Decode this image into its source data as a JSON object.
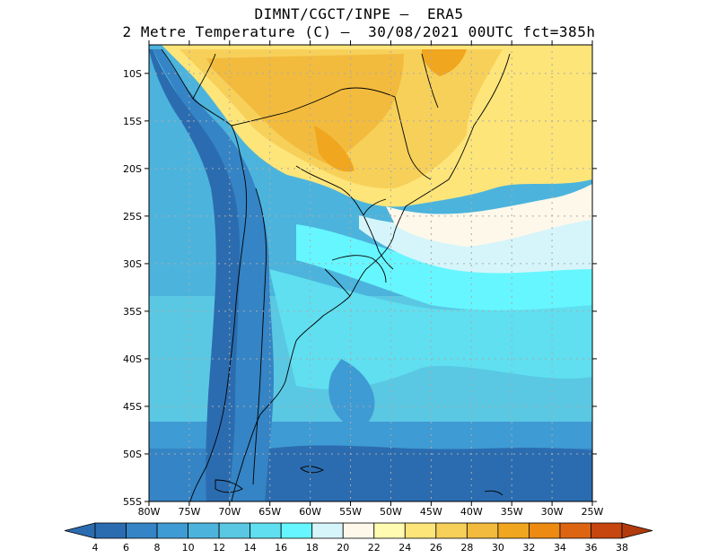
{
  "header": {
    "title_line1": "DIMNT/CGCT/INPE —  ERA5",
    "title_line2": "2 Metre Temperature (C) —  30/08/2021 00UTC fct=385h"
  },
  "map": {
    "lat_ticks": [
      "10S",
      "15S",
      "20S",
      "25S",
      "30S",
      "35S",
      "40S",
      "45S",
      "50S",
      "55S"
    ],
    "lon_ticks": [
      "80W",
      "75W",
      "70W",
      "65W",
      "60W",
      "55W",
      "50W",
      "45W",
      "40W",
      "35W",
      "30W",
      "25W"
    ],
    "lat_range": [
      -55,
      -7
    ],
    "lon_range": [
      -80,
      -25
    ],
    "gridlines": "dotted"
  },
  "colorbar": {
    "labels": [
      "4",
      "6",
      "8",
      "10",
      "12",
      "14",
      "16",
      "18",
      "20",
      "22",
      "24",
      "26",
      "28",
      "30",
      "32",
      "34",
      "36",
      "38"
    ],
    "colors": [
      "#2b6cb0",
      "#3584c5",
      "#3f9bd3",
      "#4cb4dc",
      "#5ac8e3",
      "#5fdff0",
      "#66f6ff",
      "#d5f5fa",
      "#fdf8ea",
      "#fffbb0",
      "#fde57a",
      "#f7d05a",
      "#f2bb3d",
      "#f0a61e",
      "#ec8a12",
      "#dd6512",
      "#c7450e"
    ],
    "arrow_low": "#2b6cb0",
    "arrow_high": "#b23a0d"
  }
}
